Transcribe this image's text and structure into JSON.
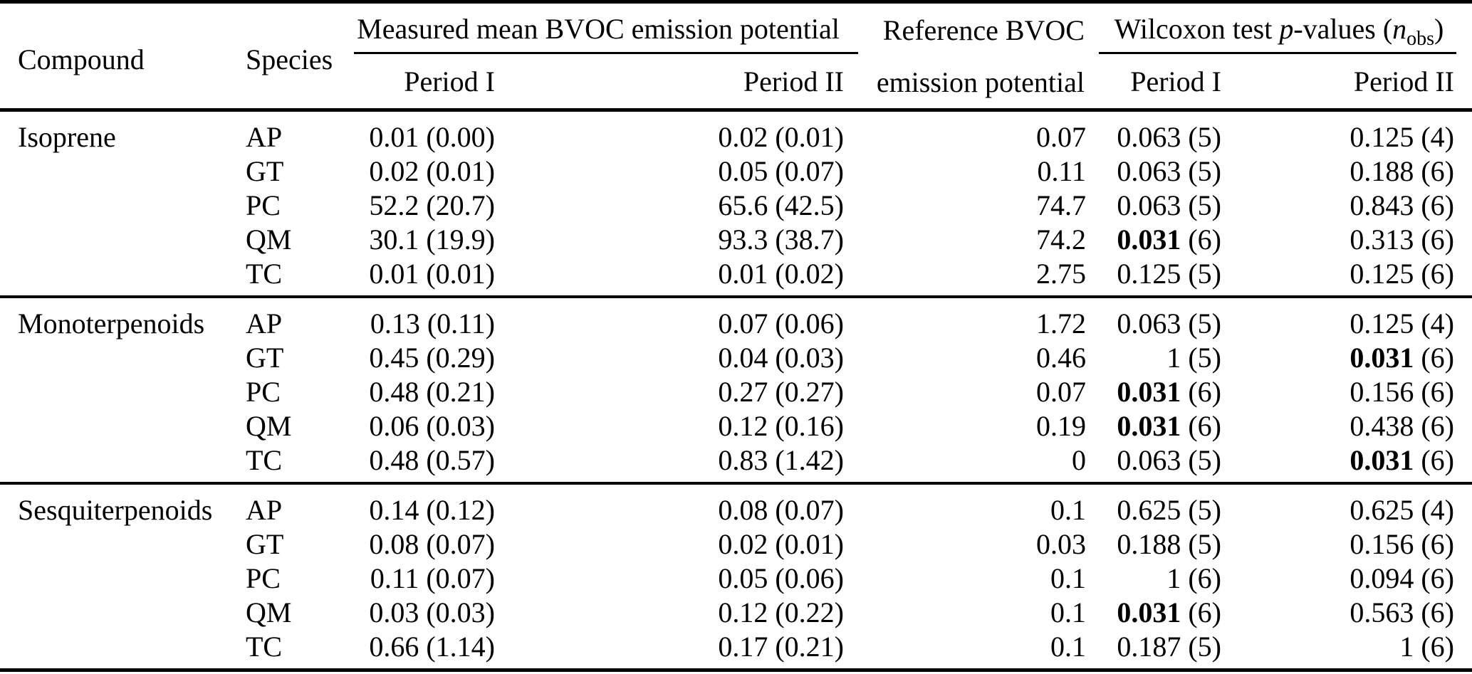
{
  "header": {
    "compound": "Compound",
    "species": "Species",
    "measured_group": "Measured mean BVOC emission potential",
    "reference_line1": "Reference BVOC",
    "reference_line2": "emission potential",
    "wilcoxon": {
      "prefix": "Wilcoxon test ",
      "p_italic": "p",
      "mid": "-values (",
      "n_italic": "n",
      "n_sub": "obs",
      "suffix": ")"
    },
    "period1": "Period I",
    "period2": "Period II"
  },
  "blocks": [
    {
      "compound": "Isoprene",
      "rows": [
        {
          "species": "AP",
          "measured_p1": "0.01 (0.00)",
          "measured_p2": "0.02 (0.01)",
          "reference": "0.07",
          "wilcoxon_p1": {
            "p": "0.063",
            "n": "5",
            "significant": false
          },
          "wilcoxon_p2": {
            "p": "0.125",
            "n": "4",
            "significant": false
          }
        },
        {
          "species": "GT",
          "measured_p1": "0.02 (0.01)",
          "measured_p2": "0.05 (0.07)",
          "reference": "0.11",
          "wilcoxon_p1": {
            "p": "0.063",
            "n": "5",
            "significant": false
          },
          "wilcoxon_p2": {
            "p": "0.188",
            "n": "6",
            "significant": false
          }
        },
        {
          "species": "PC",
          "measured_p1": "52.2 (20.7)",
          "measured_p2": "65.6 (42.5)",
          "reference": "74.7",
          "wilcoxon_p1": {
            "p": "0.063",
            "n": "5",
            "significant": false
          },
          "wilcoxon_p2": {
            "p": "0.843",
            "n": "6",
            "significant": false
          }
        },
        {
          "species": "QM",
          "measured_p1": "30.1 (19.9)",
          "measured_p2": "93.3 (38.7)",
          "reference": "74.2",
          "wilcoxon_p1": {
            "p": "0.031",
            "n": "6",
            "significant": true
          },
          "wilcoxon_p2": {
            "p": "0.313",
            "n": "6",
            "significant": false
          }
        },
        {
          "species": "TC",
          "measured_p1": "0.01 (0.01)",
          "measured_p2": "0.01 (0.02)",
          "reference": "2.75",
          "wilcoxon_p1": {
            "p": "0.125",
            "n": "5",
            "significant": false
          },
          "wilcoxon_p2": {
            "p": "0.125",
            "n": "6",
            "significant": false
          }
        }
      ]
    },
    {
      "compound": "Monoterpenoids",
      "rows": [
        {
          "species": "AP",
          "measured_p1": "0.13 (0.11)",
          "measured_p2": "0.07 (0.06)",
          "reference": "1.72",
          "wilcoxon_p1": {
            "p": "0.063",
            "n": "5",
            "significant": false
          },
          "wilcoxon_p2": {
            "p": "0.125",
            "n": "4",
            "significant": false
          }
        },
        {
          "species": "GT",
          "measured_p1": "0.45 (0.29)",
          "measured_p2": "0.04 (0.03)",
          "reference": "0.46",
          "wilcoxon_p1": {
            "p": "1",
            "n": "5",
            "significant": false
          },
          "wilcoxon_p2": {
            "p": "0.031",
            "n": "6",
            "significant": true
          }
        },
        {
          "species": "PC",
          "measured_p1": "0.48 (0.21)",
          "measured_p2": "0.27 (0.27)",
          "reference": "0.07",
          "wilcoxon_p1": {
            "p": "0.031",
            "n": "6",
            "significant": true
          },
          "wilcoxon_p2": {
            "p": "0.156",
            "n": "6",
            "significant": false
          }
        },
        {
          "species": "QM",
          "measured_p1": "0.06 (0.03)",
          "measured_p2": "0.12 (0.16)",
          "reference": "0.19",
          "wilcoxon_p1": {
            "p": "0.031",
            "n": "6",
            "significant": true
          },
          "wilcoxon_p2": {
            "p": "0.438",
            "n": "6",
            "significant": false
          }
        },
        {
          "species": "TC",
          "measured_p1": "0.48 (0.57)",
          "measured_p2": "0.83 (1.42)",
          "reference": "0",
          "wilcoxon_p1": {
            "p": "0.063",
            "n": "5",
            "significant": false
          },
          "wilcoxon_p2": {
            "p": "0.031",
            "n": "6",
            "significant": true
          }
        }
      ]
    },
    {
      "compound": "Sesquiterpenoids",
      "rows": [
        {
          "species": "AP",
          "measured_p1": "0.14 (0.12)",
          "measured_p2": "0.08 (0.07)",
          "reference": "0.1",
          "wilcoxon_p1": {
            "p": "0.625",
            "n": "5",
            "significant": false
          },
          "wilcoxon_p2": {
            "p": "0.625",
            "n": "4",
            "significant": false
          }
        },
        {
          "species": "GT",
          "measured_p1": "0.08 (0.07)",
          "measured_p2": "0.02 (0.01)",
          "reference": "0.03",
          "wilcoxon_p1": {
            "p": "0.188",
            "n": "5",
            "significant": false
          },
          "wilcoxon_p2": {
            "p": "0.156",
            "n": "6",
            "significant": false
          }
        },
        {
          "species": "PC",
          "measured_p1": "0.11 (0.07)",
          "measured_p2": "0.05 (0.06)",
          "reference": "0.1",
          "wilcoxon_p1": {
            "p": "1",
            "n": "6",
            "significant": false
          },
          "wilcoxon_p2": {
            "p": "0.094",
            "n": "6",
            "significant": false
          }
        },
        {
          "species": "QM",
          "measured_p1": "0.03 (0.03)",
          "measured_p2": "0.12 (0.22)",
          "reference": "0.1",
          "wilcoxon_p1": {
            "p": "0.031",
            "n": "6",
            "significant": true
          },
          "wilcoxon_p2": {
            "p": "0.563",
            "n": "6",
            "significant": false
          }
        },
        {
          "species": "TC",
          "measured_p1": "0.66 (1.14)",
          "measured_p2": "0.17 (0.21)",
          "reference": "0.1",
          "wilcoxon_p1": {
            "p": "0.187",
            "n": "5",
            "significant": false
          },
          "wilcoxon_p2": {
            "p": "1",
            "n": "6",
            "significant": false
          }
        }
      ]
    }
  ],
  "colors": {
    "background": "#ffffff",
    "text": "#000000",
    "rule": "#000000"
  }
}
